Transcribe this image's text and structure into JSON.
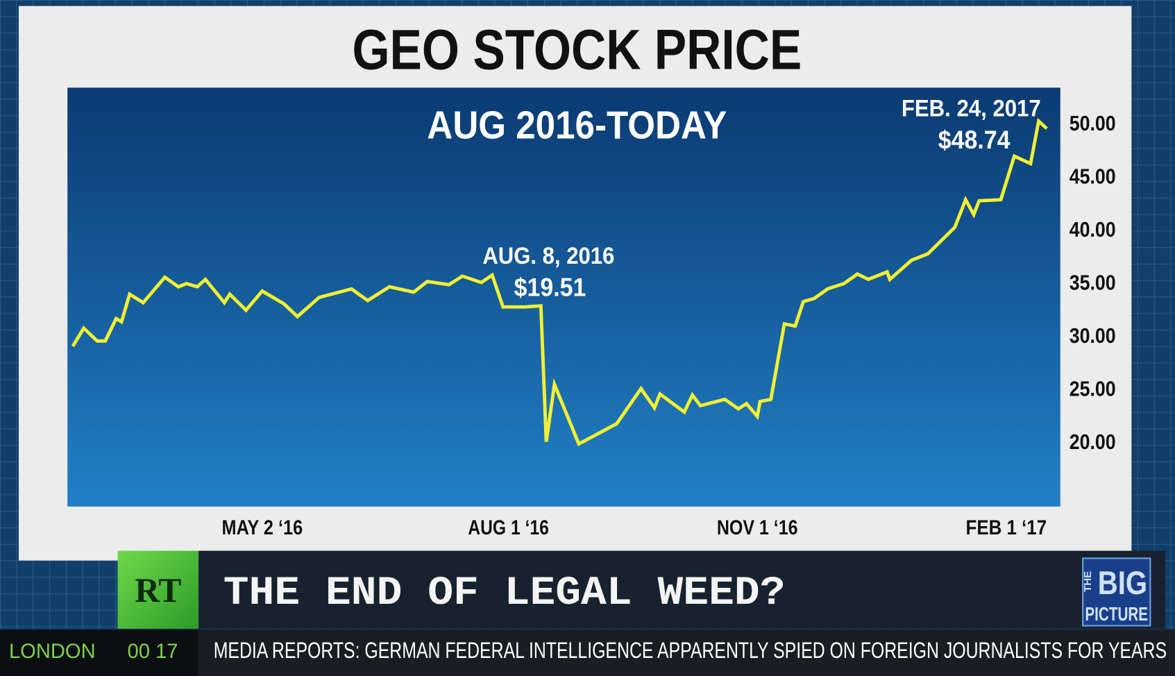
{
  "chart_data": {
    "type": "line",
    "title": "GEO STOCK PRICE",
    "subtitle": "AUG 2016-TODAY",
    "annotations": [
      "AUG. 8, 2016",
      "$19.51",
      "FEB. 24, 2017",
      "$48.74"
    ],
    "color": "#f2f032",
    "x": [
      "2016-02-22",
      "2016-02-26",
      "2016-03-02",
      "2016-03-05",
      "2016-03-09",
      "2016-03-11",
      "2016-03-14",
      "2016-03-19",
      "2016-03-27",
      "2016-04-01",
      "2016-04-04",
      "2016-04-08",
      "2016-04-11",
      "2016-04-18",
      "2016-04-20",
      "2016-04-26",
      "2016-05-02",
      "2016-05-10",
      "2016-05-15",
      "2016-05-23",
      "2016-06-04",
      "2016-06-10",
      "2016-06-18",
      "2016-06-27",
      "2016-07-02",
      "2016-07-10",
      "2016-07-15",
      "2016-07-22",
      "2016-07-26",
      "2016-07-30",
      "2016-08-07",
      "2016-08-13",
      "2016-08-15",
      "2016-08-18",
      "2016-08-27",
      "2016-09-10",
      "2016-09-19",
      "2016-09-24",
      "2016-09-26",
      "2016-10-05",
      "2016-10-08",
      "2016-10-11",
      "2016-10-20",
      "2016-10-25",
      "2016-10-28",
      "2016-11-01",
      "2016-11-02",
      "2016-11-06",
      "2016-11-11",
      "2016-11-15",
      "2016-11-18",
      "2016-11-22",
      "2016-11-27",
      "2016-12-03",
      "2016-12-08",
      "2016-12-12",
      "2016-12-19",
      "2016-12-20",
      "2016-12-28",
      "2017-01-03",
      "2017-01-13",
      "2017-01-17",
      "2017-01-20",
      "2017-01-22",
      "2017-01-30",
      "2017-02-04",
      "2017-02-10",
      "2017-02-13",
      "2017-02-16"
    ],
    "values": [
      28.9,
      30.6,
      29.4,
      29.4,
      31.5,
      31.2,
      33.8,
      33.0,
      35.4,
      34.5,
      34.8,
      34.5,
      35.2,
      33.0,
      33.8,
      32.3,
      34.1,
      32.9,
      31.7,
      33.5,
      34.3,
      33.2,
      34.5,
      34.0,
      35.0,
      34.7,
      35.5,
      34.9,
      35.6,
      32.6,
      32.6,
      32.7,
      19.9,
      25.3,
      19.7,
      21.6,
      24.9,
      23.1,
      24.4,
      22.7,
      24.3,
      23.3,
      23.9,
      23.0,
      23.5,
      22.3,
      23.7,
      23.9,
      31.0,
      30.8,
      33.1,
      33.4,
      34.3,
      34.8,
      35.7,
      35.2,
      35.9,
      35.2,
      37.0,
      37.6,
      40.1,
      42.7,
      41.3,
      42.6,
      42.7,
      46.8,
      46.1,
      50.1,
      49.4
    ],
    "xlim": [
      "2016-02-20",
      "2017-02-21"
    ],
    "xticks": [
      {
        "value": "2016-05-02",
        "label": "MAY 2 ‘16"
      },
      {
        "value": "2016-08-01",
        "label": "AUG 1 ‘16"
      },
      {
        "value": "2016-11-01",
        "label": "NOV 1 ‘16"
      },
      {
        "value": "2017-02-01",
        "label": "FEB 1 ‘17"
      }
    ],
    "ylim": [
      13.8,
      53.25
    ],
    "yticks": [
      {
        "value": 20,
        "label": "20.00"
      },
      {
        "value": 25,
        "label": "25.00"
      },
      {
        "value": 30,
        "label": "30.00"
      },
      {
        "value": 35,
        "label": "35.00"
      },
      {
        "value": 40,
        "label": "40.00"
      },
      {
        "value": 45,
        "label": "45.00"
      },
      {
        "value": 50,
        "label": "50.00"
      }
    ]
  },
  "overlay": {
    "logo": "RT",
    "headline": "THE END OF LEGAL WEED?",
    "show": [
      "THE",
      "BIG",
      "PICTURE"
    ],
    "location": "LONDON",
    "clock": "00 17",
    "ticker": "MEDIA REPORTS: GERMAN FEDERAL INTELLIGENCE APPARENTLY SPIED ON FOREIGN JOURNALISTS FOR YEARS"
  }
}
